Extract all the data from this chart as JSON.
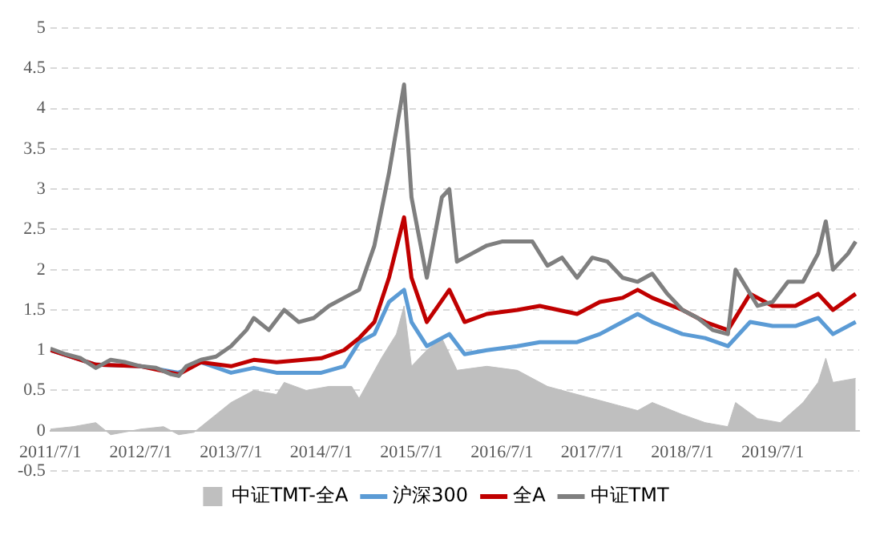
{
  "chart_data": {
    "type": "line",
    "legend": "bottom",
    "grid": "y",
    "line_style": "solid",
    "marker": "none",
    "xlim": [
      "2011-07-01",
      "2020-06-15"
    ],
    "xticks": [
      {
        "value": "2011-07-01",
        "label": "2011/7/1"
      },
      {
        "value": "2012-07-01",
        "label": "2012/7/1"
      },
      {
        "value": "2013-07-01",
        "label": "2013/7/1"
      },
      {
        "value": "2014-07-01",
        "label": "2014/7/1"
      },
      {
        "value": "2015-07-01",
        "label": "2015/7/1"
      },
      {
        "value": "2016-07-01",
        "label": "2016/7/1"
      },
      {
        "value": "2017-07-01",
        "label": "2017/7/1"
      },
      {
        "value": "2018-07-01",
        "label": "2018/7/1"
      },
      {
        "value": "2019-07-01",
        "label": "2019/7/1"
      }
    ],
    "ylim": [
      -0.5,
      5
    ],
    "yticks": [
      -0.5,
      0,
      0.5,
      1,
      1.5,
      2,
      2.5,
      3,
      3.5,
      4,
      4.5,
      5
    ],
    "series": [
      {
        "name": "中证TMT-全A",
        "type": "area",
        "color": "#bfbfbf",
        "x": [
          "2011-07",
          "2011-10",
          "2012-01",
          "2012-03",
          "2012-07",
          "2012-10",
          "2012-12",
          "2013-02",
          "2013-05",
          "2013-07",
          "2013-10",
          "2014-01",
          "2014-02",
          "2014-05",
          "2014-08",
          "2014-11",
          "2014-12",
          "2015-03",
          "2015-05",
          "2015-06",
          "2015-07",
          "2015-09",
          "2015-11",
          "2016-01",
          "2016-05",
          "2016-09",
          "2017-01",
          "2017-05",
          "2017-09",
          "2018-01",
          "2018-03",
          "2018-07",
          "2018-10",
          "2019-01",
          "2019-02",
          "2019-05",
          "2019-08",
          "2019-11",
          "2020-01",
          "2020-02",
          "2020-03",
          "2020-06"
        ],
        "values": [
          0.02,
          0.05,
          0.1,
          -0.05,
          0.02,
          0.05,
          -0.05,
          -0.02,
          0.2,
          0.35,
          0.5,
          0.45,
          0.6,
          0.5,
          0.55,
          0.55,
          0.4,
          0.9,
          1.2,
          1.55,
          0.8,
          1.0,
          1.15,
          0.75,
          0.8,
          0.75,
          0.55,
          0.45,
          0.35,
          0.25,
          0.35,
          0.2,
          0.1,
          0.05,
          0.35,
          0.15,
          0.1,
          0.35,
          0.6,
          0.9,
          0.6,
          0.65
        ]
      },
      {
        "name": "沪深300",
        "type": "line",
        "color": "#5b9bd5",
        "x": [
          "2011-07",
          "2012-01",
          "2012-07",
          "2012-12",
          "2013-03",
          "2013-07",
          "2013-10",
          "2014-01",
          "2014-07",
          "2014-10",
          "2014-12",
          "2015-02",
          "2015-04",
          "2015-06",
          "2015-07",
          "2015-09",
          "2015-12",
          "2016-02",
          "2016-05",
          "2016-09",
          "2016-12",
          "2017-05",
          "2017-08",
          "2017-11",
          "2018-01",
          "2018-03",
          "2018-07",
          "2018-10",
          "2019-01",
          "2019-04",
          "2019-07",
          "2019-10",
          "2020-01",
          "2020-03",
          "2020-06"
        ],
        "values": [
          1.0,
          0.82,
          0.8,
          0.72,
          0.85,
          0.72,
          0.78,
          0.72,
          0.72,
          0.8,
          1.1,
          1.2,
          1.6,
          1.75,
          1.35,
          1.05,
          1.2,
          0.95,
          1.0,
          1.05,
          1.1,
          1.1,
          1.2,
          1.35,
          1.45,
          1.35,
          1.2,
          1.15,
          1.05,
          1.35,
          1.3,
          1.3,
          1.4,
          1.2,
          1.35
        ]
      },
      {
        "name": "全A",
        "type": "line",
        "color": "#c00000",
        "x": [
          "2011-07",
          "2012-01",
          "2012-07",
          "2012-12",
          "2013-03",
          "2013-07",
          "2013-10",
          "2014-01",
          "2014-07",
          "2014-10",
          "2014-12",
          "2015-02",
          "2015-04",
          "2015-06",
          "2015-07",
          "2015-09",
          "2015-12",
          "2016-02",
          "2016-05",
          "2016-09",
          "2016-12",
          "2017-05",
          "2017-08",
          "2017-11",
          "2018-01",
          "2018-03",
          "2018-07",
          "2018-10",
          "2019-01",
          "2019-04",
          "2019-07",
          "2019-10",
          "2020-01",
          "2020-03",
          "2020-06"
        ],
        "values": [
          1.0,
          0.82,
          0.8,
          0.7,
          0.85,
          0.8,
          0.88,
          0.85,
          0.9,
          1.0,
          1.15,
          1.35,
          1.9,
          2.65,
          1.9,
          1.35,
          1.75,
          1.35,
          1.45,
          1.5,
          1.55,
          1.45,
          1.6,
          1.65,
          1.75,
          1.65,
          1.5,
          1.35,
          1.25,
          1.7,
          1.55,
          1.55,
          1.7,
          1.5,
          1.7
        ]
      },
      {
        "name": "中证TMT",
        "type": "line",
        "color": "#7f7f7f",
        "x": [
          "2011-07",
          "2011-09",
          "2011-11",
          "2012-01",
          "2012-03",
          "2012-05",
          "2012-07",
          "2012-09",
          "2012-11",
          "2012-12",
          "2013-01",
          "2013-03",
          "2013-05",
          "2013-07",
          "2013-09",
          "2013-10",
          "2013-12",
          "2014-02",
          "2014-04",
          "2014-06",
          "2014-08",
          "2014-10",
          "2014-12",
          "2015-02",
          "2015-04",
          "2015-06",
          "2015-07",
          "2015-09",
          "2015-11",
          "2015-12",
          "2016-01",
          "2016-03",
          "2016-05",
          "2016-07",
          "2016-09",
          "2016-11",
          "2017-01",
          "2017-03",
          "2017-05",
          "2017-07",
          "2017-09",
          "2017-11",
          "2018-01",
          "2018-03",
          "2018-05",
          "2018-07",
          "2018-09",
          "2018-11",
          "2019-01",
          "2019-02",
          "2019-05",
          "2019-07",
          "2019-09",
          "2019-11",
          "2020-01",
          "2020-02",
          "2020-03",
          "2020-05",
          "2020-06"
        ],
        "values": [
          1.02,
          0.95,
          0.9,
          0.78,
          0.88,
          0.85,
          0.8,
          0.78,
          0.7,
          0.68,
          0.8,
          0.88,
          0.92,
          1.05,
          1.25,
          1.4,
          1.25,
          1.5,
          1.35,
          1.4,
          1.55,
          1.65,
          1.75,
          2.3,
          3.2,
          4.3,
          2.9,
          1.9,
          2.9,
          3.0,
          2.1,
          2.2,
          2.3,
          2.35,
          2.35,
          2.35,
          2.05,
          2.15,
          1.9,
          2.15,
          2.1,
          1.9,
          1.85,
          1.95,
          1.7,
          1.5,
          1.4,
          1.25,
          1.2,
          2.0,
          1.55,
          1.6,
          1.85,
          1.85,
          2.2,
          2.6,
          2.0,
          2.2,
          2.35
        ]
      }
    ]
  }
}
